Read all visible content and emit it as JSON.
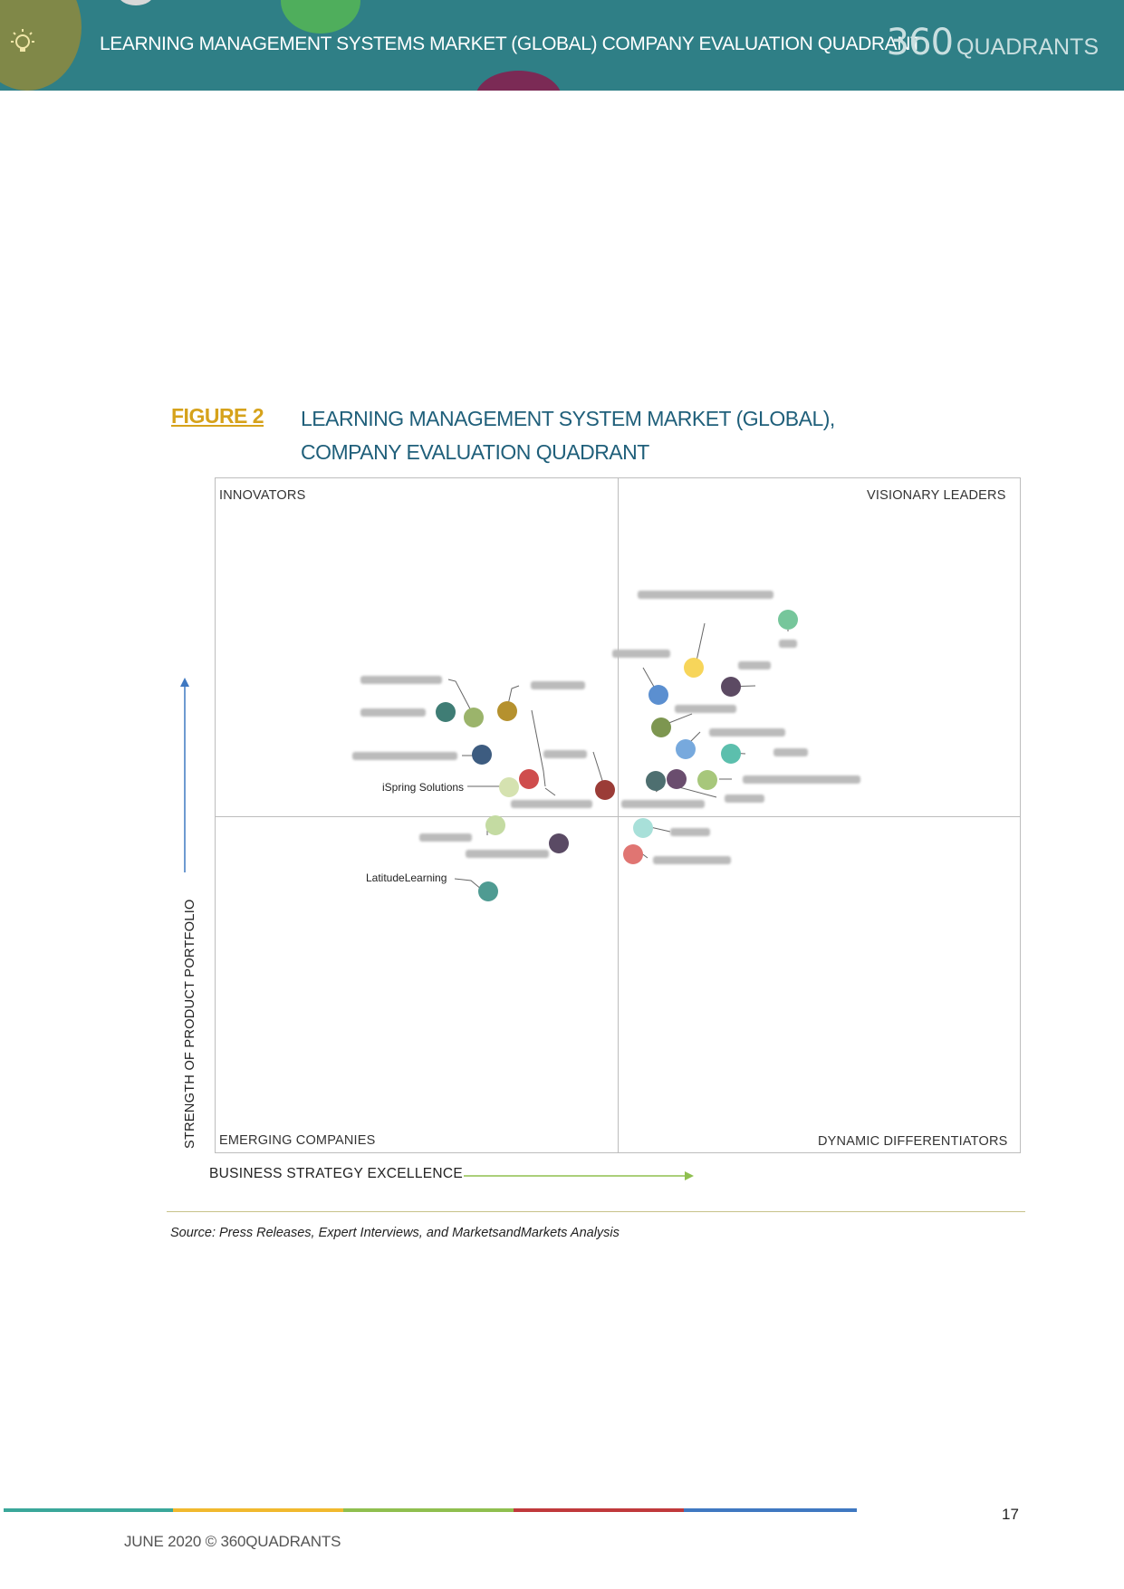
{
  "header": {
    "title": "LEARNING MANAGEMENT SYSTEMS MARKET (GLOBAL) COMPANY EVALUATION QUADRANT",
    "brand_number": "360",
    "brand_word": "QUADRANTS",
    "color": "#2f7f86"
  },
  "figure": {
    "label": "FIGURE 2",
    "title_line1": "LEARNING MANAGEMENT SYSTEM MARKET (GLOBAL),",
    "title_line2": "COMPANY EVALUATION QUADRANT",
    "label_color": "#d6a21b",
    "title_color": "#1f5f7a"
  },
  "chart_data": {
    "type": "scatter",
    "quadrants": {
      "top_left": "INNOVATORS",
      "top_right": "VISIONARY LEADERS",
      "bottom_left": "EMERGING COMPANIES",
      "bottom_right": "DYNAMIC DIFFERENTIATORS"
    },
    "ylabel": "STRENGTH OF PRODUCT PORTFOLIO",
    "xlabel": "BUSINESS STRATEGY EXCELLENCE",
    "visible_labels": {
      "ispring": "iSpring Solutions",
      "latitude": "LatitudeLearning"
    }
  },
  "source": "Source: Press Releases, Expert Interviews, and MarketsandMarkets Analysis",
  "footer": {
    "page_number": "17",
    "text": "JUNE 2020 © 360QUADRANTS",
    "bar_colors": [
      "#3aa79a",
      "#f1b92e",
      "#8fbf4f",
      "#c0393b",
      "#3f78c1"
    ]
  }
}
